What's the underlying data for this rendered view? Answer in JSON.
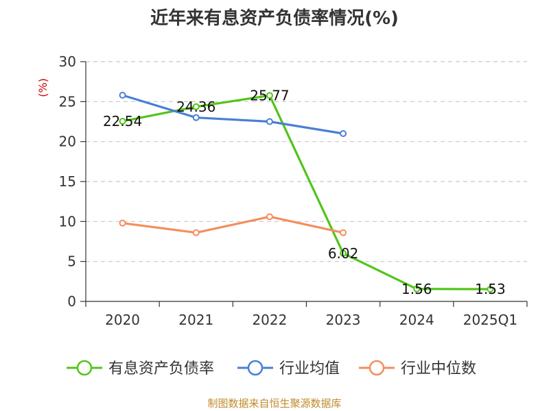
{
  "title": "近年来有息资产负债率情况(%)",
  "source": "制图数据来自恒生聚源数据库",
  "chart_data": {
    "type": "line",
    "title": "近年来有息资产负债率情况(%)",
    "ylabel": "(%)",
    "xlabel": "",
    "categories": [
      "2020",
      "2021",
      "2022",
      "2023",
      "2024",
      "2025Q1"
    ],
    "ylim": [
      0,
      30
    ],
    "yticks": [
      0,
      5,
      10,
      15,
      20,
      25,
      30
    ],
    "grid": true,
    "legend_position": "bottom",
    "series": [
      {
        "name": "有息资产负债率",
        "color": "#52c41a",
        "values": [
          22.54,
          24.36,
          25.77,
          6.02,
          1.56,
          1.53
        ],
        "labels": [
          "22.54",
          "24.36",
          "25.77",
          "6.02",
          "1.56",
          "1.53"
        ]
      },
      {
        "name": "行业均值",
        "color": "#4a7fd6",
        "values": [
          25.8,
          23.0,
          22.5,
          21.0,
          null,
          null
        ]
      },
      {
        "name": "行业中位数",
        "color": "#f58d5c",
        "values": [
          9.8,
          8.6,
          10.6,
          8.6,
          null,
          null
        ]
      }
    ]
  }
}
